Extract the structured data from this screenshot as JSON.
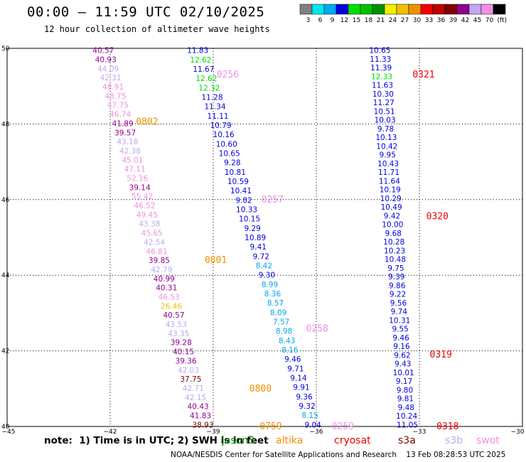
{
  "title": "00:00 – 11:59 UTC 02/10/2025",
  "subtitle": "12 hour collection of altimeter wave heights",
  "colorbar": {
    "unit": "(ft)",
    "bins": [
      {
        "label": "3",
        "color": "#808080"
      },
      {
        "label": "6",
        "color": "#00e8f0"
      },
      {
        "label": "9",
        "color": "#00a8f0"
      },
      {
        "label": "12",
        "color": "#0000e0"
      },
      {
        "label": "15",
        "color": "#00e000"
      },
      {
        "label": "18",
        "color": "#00c000"
      },
      {
        "label": "21",
        "color": "#009000"
      },
      {
        "label": "24",
        "color": "#f0f000"
      },
      {
        "label": "27",
        "color": "#f0c000"
      },
      {
        "label": "30",
        "color": "#f09000"
      },
      {
        "label": "33",
        "color": "#f00000"
      },
      {
        "label": "36",
        "color": "#c00000"
      },
      {
        "label": "39",
        "color": "#800000"
      },
      {
        "label": "42",
        "color": "#900090"
      },
      {
        "label": "45",
        "color": "#c0a8f0"
      },
      {
        "label": "70",
        "color": "#f090e0"
      },
      {
        "label": "",
        "color": "#000000"
      }
    ]
  },
  "chart_data": {
    "type": "scatter",
    "title": "00:00 – 11:59 UTC 02/10/2025",
    "subtitle": "12 hour collection of altimeter wave heights",
    "xlim": [
      -45,
      -30
    ],
    "ylim": [
      40,
      50
    ],
    "x_ticks": [
      -45,
      -42,
      -39,
      -36,
      -33,
      -30
    ],
    "y_ticks": [
      50,
      48,
      46,
      44,
      42,
      40
    ],
    "x_tick_labels": [
      "−45",
      "−42",
      "−39",
      "−36",
      "−33",
      "−30"
    ],
    "y_tick_labels": [
      "50",
      "48",
      "46",
      "44",
      "42",
      "40"
    ],
    "grid": true,
    "tracks": [
      {
        "x0": -42.2,
        "y0": 49.95,
        "x1": -39.3,
        "y1": 40.05,
        "points": [
          {
            "v": "40.57",
            "c": "#900090"
          },
          {
            "v": "40.93",
            "c": "#900090"
          },
          {
            "v": "44.09",
            "c": "#c0a8f0"
          },
          {
            "v": "42.31",
            "c": "#c0a8f0"
          },
          {
            "v": "48.91",
            "c": "#f090e0"
          },
          {
            "v": "48.75",
            "c": "#f090e0"
          },
          {
            "v": "47.75",
            "c": "#f090e0"
          },
          {
            "v": "46.74",
            "c": "#f090e0"
          },
          {
            "v": "41.89",
            "c": "#900090"
          },
          {
            "v": "39.57",
            "c": "#900090"
          },
          {
            "v": "43.18",
            "c": "#c0a8f0"
          },
          {
            "v": "42.38",
            "c": "#c0a8f0"
          },
          {
            "v": "45.01",
            "c": "#f090e0"
          },
          {
            "v": "47.11",
            "c": "#f090e0"
          },
          {
            "v": "52.16",
            "c": "#f090e0"
          },
          {
            "v": "39.14",
            "c": "#900090"
          },
          {
            "v": "55.42",
            "c": "#f090e0"
          },
          {
            "v": "46.52",
            "c": "#f090e0"
          },
          {
            "v": "49.45",
            "c": "#f090e0"
          },
          {
            "v": "43.38",
            "c": "#c0a8f0"
          },
          {
            "v": "45.65",
            "c": "#f090e0"
          },
          {
            "v": "42.54",
            "c": "#c0a8f0"
          },
          {
            "v": "46.81",
            "c": "#f090e0"
          },
          {
            "v": "39.85",
            "c": "#900090"
          },
          {
            "v": "42.79",
            "c": "#c0a8f0"
          },
          {
            "v": "40.99",
            "c": "#900090"
          },
          {
            "v": "40.31",
            "c": "#900090"
          },
          {
            "v": "46.53",
            "c": "#f090e0"
          },
          {
            "v": "26.46",
            "c": "#f0c000"
          },
          {
            "v": "40.57",
            "c": "#900090"
          },
          {
            "v": "43.53",
            "c": "#c0a8f0"
          },
          {
            "v": "43.35",
            "c": "#c0a8f0"
          },
          {
            "v": "39.28",
            "c": "#900090"
          },
          {
            "v": "40.15",
            "c": "#900090"
          },
          {
            "v": "39.36",
            "c": "#900090"
          },
          {
            "v": "42.03",
            "c": "#c0a8f0"
          },
          {
            "v": "37.75",
            "c": "#800000"
          },
          {
            "v": "42.71",
            "c": "#c0a8f0"
          },
          {
            "v": "42.15",
            "c": "#c0a8f0"
          },
          {
            "v": "40.43",
            "c": "#900090"
          },
          {
            "v": "41.83",
            "c": "#900090"
          },
          {
            "v": "38.93",
            "c": "#800000"
          }
        ]
      },
      {
        "x0": -39.45,
        "y0": 49.95,
        "x1": -36.1,
        "y1": 40.05,
        "points": [
          {
            "v": "11.83",
            "c": "#0000e0"
          },
          {
            "v": "12.62",
            "c": "#00e000"
          },
          {
            "v": "11.67",
            "c": "#0000e0"
          },
          {
            "v": "12.62",
            "c": "#00e000"
          },
          {
            "v": "12.32",
            "c": "#00e000"
          },
          {
            "v": "11.28",
            "c": "#0000e0"
          },
          {
            "v": "11.34",
            "c": "#0000e0"
          },
          {
            "v": "11.11",
            "c": "#0000e0"
          },
          {
            "v": "10.79",
            "c": "#0000e0"
          },
          {
            "v": "10.16",
            "c": "#0000e0"
          },
          {
            "v": "10.60",
            "c": "#0000e0"
          },
          {
            "v": "10.65",
            "c": "#0000e0"
          },
          {
            "v": "9.28",
            "c": "#0000e0"
          },
          {
            "v": "10.81",
            "c": "#0000e0"
          },
          {
            "v": "10.59",
            "c": "#0000e0"
          },
          {
            "v": "10.41",
            "c": "#0000e0"
          },
          {
            "v": "9.82",
            "c": "#0000e0"
          },
          {
            "v": "10.33",
            "c": "#0000e0"
          },
          {
            "v": "10.15",
            "c": "#0000e0"
          },
          {
            "v": "9.29",
            "c": "#0000e0"
          },
          {
            "v": "10.89",
            "c": "#0000e0"
          },
          {
            "v": "9.41",
            "c": "#0000e0"
          },
          {
            "v": "9.72",
            "c": "#0000e0"
          },
          {
            "v": "8.42",
            "c": "#00a8f0"
          },
          {
            "v": "9.30",
            "c": "#0000e0"
          },
          {
            "v": "8.99",
            "c": "#00a8f0"
          },
          {
            "v": "8.36",
            "c": "#00a8f0"
          },
          {
            "v": "8.57",
            "c": "#00a8f0"
          },
          {
            "v": "8.09",
            "c": "#00a8f0"
          },
          {
            "v": "7.57",
            "c": "#00a8f0"
          },
          {
            "v": "8.98",
            "c": "#00a8f0"
          },
          {
            "v": "8.43",
            "c": "#00a8f0"
          },
          {
            "v": "8.16",
            "c": "#00a8f0"
          },
          {
            "v": "9.46",
            "c": "#0000e0"
          },
          {
            "v": "9.71",
            "c": "#0000e0"
          },
          {
            "v": "9.14",
            "c": "#0000e0"
          },
          {
            "v": "9.91",
            "c": "#0000e0"
          },
          {
            "v": "9.36",
            "c": "#0000e0"
          },
          {
            "v": "9.32",
            "c": "#0000e0"
          },
          {
            "v": "8.15",
            "c": "#00a8f0"
          },
          {
            "v": "9.04",
            "c": "#0000e0"
          }
        ]
      },
      {
        "x0": -34.15,
        "y0": 49.95,
        "x1": -33.35,
        "y1": 40.05,
        "points": [
          {
            "v": "10.65",
            "c": "#0000e0"
          },
          {
            "v": "11.33",
            "c": "#0000e0"
          },
          {
            "v": "11.39",
            "c": "#0000e0"
          },
          {
            "v": "12.33",
            "c": "#00e000"
          },
          {
            "v": "11.63",
            "c": "#0000e0"
          },
          {
            "v": "10.30",
            "c": "#0000e0"
          },
          {
            "v": "11.27",
            "c": "#0000e0"
          },
          {
            "v": "10.51",
            "c": "#0000e0"
          },
          {
            "v": "10.03",
            "c": "#0000e0"
          },
          {
            "v": "9.78",
            "c": "#0000e0"
          },
          {
            "v": "10.13",
            "c": "#0000e0"
          },
          {
            "v": "10.42",
            "c": "#0000e0"
          },
          {
            "v": "9.95",
            "c": "#0000e0"
          },
          {
            "v": "10.43",
            "c": "#0000e0"
          },
          {
            "v": "11.71",
            "c": "#0000e0"
          },
          {
            "v": "11.64",
            "c": "#0000e0"
          },
          {
            "v": "10.19",
            "c": "#0000e0"
          },
          {
            "v": "10.29",
            "c": "#0000e0"
          },
          {
            "v": "10.49",
            "c": "#0000e0"
          },
          {
            "v": "9.42",
            "c": "#0000e0"
          },
          {
            "v": "10.00",
            "c": "#0000e0"
          },
          {
            "v": "9.68",
            "c": "#0000e0"
          },
          {
            "v": "10.28",
            "c": "#0000e0"
          },
          {
            "v": "10.23",
            "c": "#0000e0"
          },
          {
            "v": "10.48",
            "c": "#0000e0"
          },
          {
            "v": "9.75",
            "c": "#0000e0"
          },
          {
            "v": "9.39",
            "c": "#0000e0"
          },
          {
            "v": "9.86",
            "c": "#0000e0"
          },
          {
            "v": "9.22",
            "c": "#0000e0"
          },
          {
            "v": "9.56",
            "c": "#0000e0"
          },
          {
            "v": "9.74",
            "c": "#0000e0"
          },
          {
            "v": "10.31",
            "c": "#0000e0"
          },
          {
            "v": "9.55",
            "c": "#0000e0"
          },
          {
            "v": "9.46",
            "c": "#0000e0"
          },
          {
            "v": "9.16",
            "c": "#0000e0"
          },
          {
            "v": "9.62",
            "c": "#0000e0"
          },
          {
            "v": "9.43",
            "c": "#0000e0"
          },
          {
            "v": "10.01",
            "c": "#0000e0"
          },
          {
            "v": "9.17",
            "c": "#0000e0"
          },
          {
            "v": "9.80",
            "c": "#0000e0"
          },
          {
            "v": "9.81",
            "c": "#0000e0"
          },
          {
            "v": "9.48",
            "c": "#0000e0"
          },
          {
            "v": "10.24",
            "c": "#0000e0"
          },
          {
            "v": "11.05",
            "c": "#0000e0"
          }
        ]
      }
    ],
    "pass_labels": [
      {
        "text": "0256",
        "x": -38.9,
        "y": 49.3,
        "color": "#f090e0"
      },
      {
        "text": "0802",
        "x": -41.25,
        "y": 48.05,
        "color": "#f09000"
      },
      {
        "text": "0257",
        "x": -37.6,
        "y": 46.0,
        "color": "#f090e0"
      },
      {
        "text": "0801",
        "x": -39.25,
        "y": 44.4,
        "color": "#f09000"
      },
      {
        "text": "0258",
        "x": -36.3,
        "y": 42.58,
        "color": "#f090e0"
      },
      {
        "text": "0800",
        "x": -37.95,
        "y": 41.0,
        "color": "#f09000"
      },
      {
        "text": "0759",
        "x": -37.65,
        "y": 40.0,
        "color": "#f09000"
      },
      {
        "text": "0259",
        "x": -35.55,
        "y": 40.0,
        "color": "#f090e0"
      },
      {
        "text": "0321",
        "x": -33.2,
        "y": 49.3,
        "color": "#f00000"
      },
      {
        "text": "0320",
        "x": -32.8,
        "y": 45.55,
        "color": "#f00000"
      },
      {
        "text": "0319",
        "x": -32.7,
        "y": 41.9,
        "color": "#f00000"
      },
      {
        "text": "0318",
        "x": -32.5,
        "y": 40.0,
        "color": "#f00000"
      }
    ]
  },
  "note": "note:  1) Time is in UTC; 2) SWH is in feet",
  "legend": [
    {
      "name": "jason3",
      "color": "#009000"
    },
    {
      "name": "altika",
      "color": "#f09000"
    },
    {
      "name": "cryosat",
      "color": "#f00000"
    },
    {
      "name": "s3a",
      "color": "#800000"
    },
    {
      "name": "s3b",
      "color": "#c0a8f0"
    },
    {
      "name": "swot",
      "color": "#f090e0"
    }
  ],
  "footer": "NOAA/NESDIS Center for Satellite Applications and Research    13 Feb 08:28:53 UTC 2025"
}
